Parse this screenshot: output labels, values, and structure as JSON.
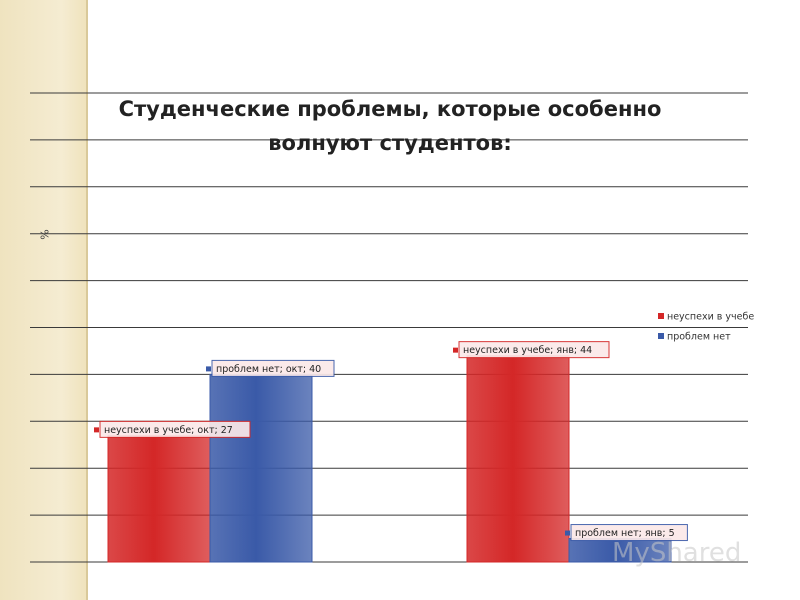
{
  "chart_data": {
    "type": "bar",
    "title": "Студенческие проблемы, которые особенно волнуют студентов:",
    "ylabel": "%",
    "categories": [
      "окт",
      "янв"
    ],
    "series": [
      {
        "name": "неуспехи в учебе",
        "values": [
          27,
          44
        ],
        "color": "#d42727"
      },
      {
        "name": "проблем нет",
        "values": [
          40,
          5
        ],
        "color": "#3a5aa8"
      }
    ],
    "data_labels": [
      "неуспехи в учебе; окт; 27",
      "проблем нет; окт; 40",
      "неуспехи в учебе; янв; 44",
      "проблем нет; янв; 5"
    ],
    "ylim": [
      0,
      100
    ],
    "grid": true,
    "legend_position": "right"
  },
  "watermark": "MyShared"
}
